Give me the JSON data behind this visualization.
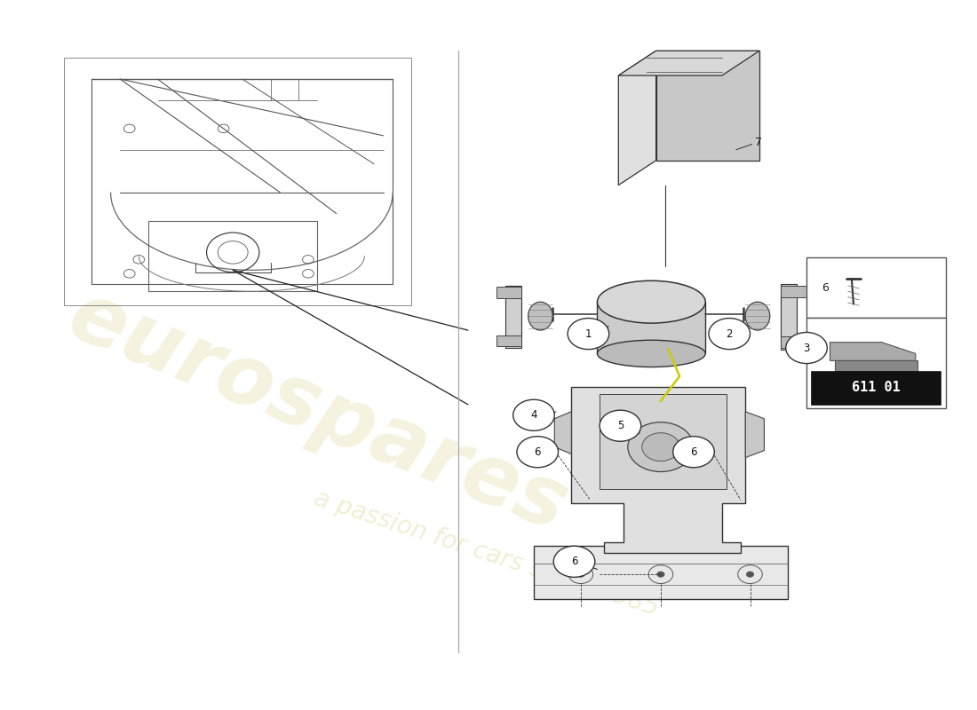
{
  "bg_color": "#ffffff",
  "fig_width": 11.0,
  "fig_height": 8.0,
  "watermark_color": "#d4c870",
  "watermark_alpha": 0.45,
  "box_code": "611 01",
  "line_color": "#333333",
  "callout_color": "#333333"
}
